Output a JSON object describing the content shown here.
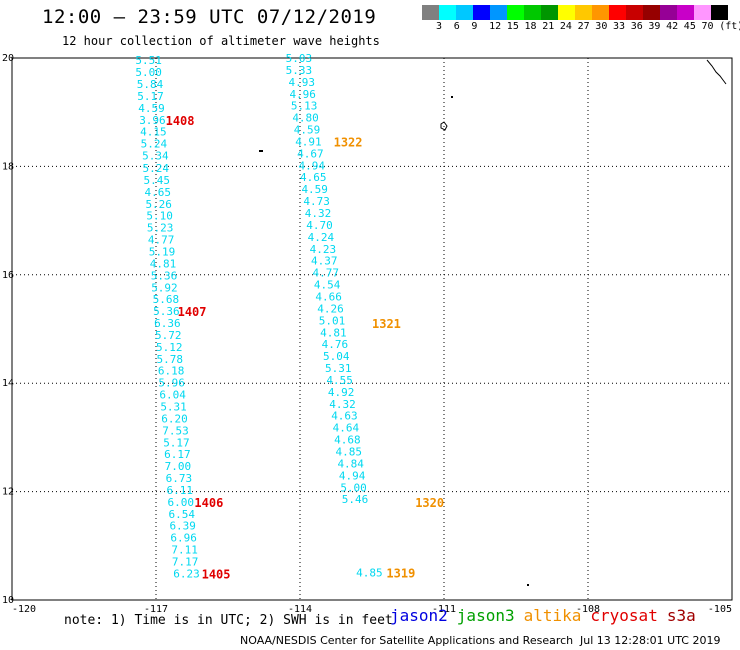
{
  "header": {
    "title": "12:00 — 23:59 UTC 07/12/2019",
    "subtitle": "12 hour collection of altimeter wave heights"
  },
  "legend": {
    "colors": [
      "#808080",
      "#00ffff",
      "#00c8ff",
      "#0000ff",
      "#0096ff",
      "#00ff00",
      "#00c800",
      "#009600",
      "#ffff00",
      "#ffc800",
      "#ff9600",
      "#ff0000",
      "#c80000",
      "#960000",
      "#960096",
      "#c800c8",
      "#ff96ff",
      "#000000"
    ],
    "labels": [
      "3",
      "6",
      "9",
      "12",
      "15",
      "18",
      "21",
      "24",
      "27",
      "30",
      "33",
      "36",
      "39",
      "42",
      "45",
      "70",
      "(ft)"
    ]
  },
  "axes": {
    "x_ticks": [
      "-120",
      "-117",
      "-114",
      "-111",
      "-108",
      "-105"
    ],
    "y_ticks": [
      "20",
      "18",
      "16",
      "14",
      "12",
      "10"
    ]
  },
  "tracks": [
    {
      "name": "1405-1408",
      "color": "#00d8f0",
      "points": [
        {
          "lon": -117.43,
          "lat": 19.96,
          "v": "5.51"
        },
        {
          "lon": -117.43,
          "lat": 19.74,
          "v": "5.00"
        },
        {
          "lon": -117.4,
          "lat": 19.52,
          "v": "5.84"
        },
        {
          "lon": -117.39,
          "lat": 19.3,
          "v": "5.17"
        },
        {
          "lon": -117.37,
          "lat": 19.08,
          "v": "4.59"
        },
        {
          "lon": -117.35,
          "lat": 18.86,
          "v": "3.96"
        },
        {
          "lon": -117.33,
          "lat": 18.64,
          "v": "4.15"
        },
        {
          "lon": -117.32,
          "lat": 18.42,
          "v": "5.24"
        },
        {
          "lon": -117.29,
          "lat": 18.2,
          "v": "5.34"
        },
        {
          "lon": -117.28,
          "lat": 17.97,
          "v": "5.24"
        },
        {
          "lon": -117.26,
          "lat": 17.75,
          "v": "5.45"
        },
        {
          "lon": -117.24,
          "lat": 17.53,
          "v": "4.65"
        },
        {
          "lon": -117.22,
          "lat": 17.31,
          "v": "5.26"
        },
        {
          "lon": -117.2,
          "lat": 17.09,
          "v": "5.10"
        },
        {
          "lon": -117.19,
          "lat": 16.87,
          "v": "5.23"
        },
        {
          "lon": -117.17,
          "lat": 16.65,
          "v": "4.77"
        },
        {
          "lon": -117.15,
          "lat": 16.43,
          "v": "5.19"
        },
        {
          "lon": -117.13,
          "lat": 16.21,
          "v": "4.81"
        },
        {
          "lon": -117.11,
          "lat": 15.99,
          "v": "5.36"
        },
        {
          "lon": -117.1,
          "lat": 15.77,
          "v": "5.92"
        },
        {
          "lon": -117.07,
          "lat": 15.55,
          "v": "5.68"
        },
        {
          "lon": -117.06,
          "lat": 15.33,
          "v": "5.36"
        },
        {
          "lon": -117.04,
          "lat": 15.11,
          "v": "6.36"
        },
        {
          "lon": -117.02,
          "lat": 14.89,
          "v": "5.72"
        },
        {
          "lon": -117.0,
          "lat": 14.67,
          "v": "5.12"
        },
        {
          "lon": -116.99,
          "lat": 14.45,
          "v": "5.78"
        },
        {
          "lon": -116.96,
          "lat": 14.23,
          "v": "6.18"
        },
        {
          "lon": -116.95,
          "lat": 14.01,
          "v": "5.96"
        },
        {
          "lon": -116.93,
          "lat": 13.79,
          "v": "6.04"
        },
        {
          "lon": -116.91,
          "lat": 13.57,
          "v": "5.31"
        },
        {
          "lon": -116.89,
          "lat": 13.35,
          "v": "6.20"
        },
        {
          "lon": -116.87,
          "lat": 13.13,
          "v": "7.53"
        },
        {
          "lon": -116.85,
          "lat": 12.91,
          "v": "5.17"
        },
        {
          "lon": -116.83,
          "lat": 12.69,
          "v": "6.17"
        },
        {
          "lon": -116.82,
          "lat": 12.47,
          "v": "7.00"
        },
        {
          "lon": -116.8,
          "lat": 12.25,
          "v": "6.73"
        },
        {
          "lon": -116.78,
          "lat": 12.03,
          "v": "6.11"
        },
        {
          "lon": -116.76,
          "lat": 11.81,
          "v": "6.00"
        },
        {
          "lon": -116.74,
          "lat": 11.59,
          "v": "6.54"
        },
        {
          "lon": -116.72,
          "lat": 11.37,
          "v": "6.39"
        },
        {
          "lon": -116.7,
          "lat": 11.15,
          "v": "6.96"
        },
        {
          "lon": -116.68,
          "lat": 10.93,
          "v": "7.11"
        },
        {
          "lon": -116.67,
          "lat": 10.71,
          "v": "7.17"
        },
        {
          "lon": -116.64,
          "lat": 10.49,
          "v": "6.23"
        }
      ]
    },
    {
      "name": "1319-1322",
      "color": "#00d8f0",
      "points": [
        {
          "lon": -114.3,
          "lat": 20.0,
          "v": "5.03"
        },
        {
          "lon": -114.3,
          "lat": 19.78,
          "v": "5.33"
        },
        {
          "lon": -114.24,
          "lat": 19.56,
          "v": "4.93"
        },
        {
          "lon": -114.22,
          "lat": 19.34,
          "v": "4.96"
        },
        {
          "lon": -114.19,
          "lat": 19.12,
          "v": "5.13"
        },
        {
          "lon": -114.16,
          "lat": 18.9,
          "v": "4.80"
        },
        {
          "lon": -114.13,
          "lat": 18.68,
          "v": "4.59"
        },
        {
          "lon": -114.1,
          "lat": 18.46,
          "v": "4.91"
        },
        {
          "lon": -114.06,
          "lat": 18.24,
          "v": "4.67"
        },
        {
          "lon": -114.03,
          "lat": 18.02,
          "v": "4.94"
        },
        {
          "lon": -114.0,
          "lat": 17.8,
          "v": "4.65"
        },
        {
          "lon": -113.97,
          "lat": 17.58,
          "v": "4.59"
        },
        {
          "lon": -113.93,
          "lat": 17.36,
          "v": "4.73"
        },
        {
          "lon": -113.9,
          "lat": 17.14,
          "v": "4.32"
        },
        {
          "lon": -113.87,
          "lat": 16.92,
          "v": "4.70"
        },
        {
          "lon": -113.84,
          "lat": 16.7,
          "v": "4.24"
        },
        {
          "lon": -113.8,
          "lat": 16.48,
          "v": "4.23"
        },
        {
          "lon": -113.77,
          "lat": 16.26,
          "v": "4.37"
        },
        {
          "lon": -113.74,
          "lat": 16.04,
          "v": "4.77"
        },
        {
          "lon": -113.71,
          "lat": 15.82,
          "v": "4.54"
        },
        {
          "lon": -113.68,
          "lat": 15.6,
          "v": "4.66"
        },
        {
          "lon": -113.64,
          "lat": 15.38,
          "v": "4.26"
        },
        {
          "lon": -113.61,
          "lat": 15.16,
          "v": "5.01"
        },
        {
          "lon": -113.58,
          "lat": 14.94,
          "v": "4.81"
        },
        {
          "lon": -113.55,
          "lat": 14.72,
          "v": "4.76"
        },
        {
          "lon": -113.52,
          "lat": 14.5,
          "v": "5.04"
        },
        {
          "lon": -113.48,
          "lat": 14.28,
          "v": "5.31"
        },
        {
          "lon": -113.45,
          "lat": 14.06,
          "v": "4.55"
        },
        {
          "lon": -113.42,
          "lat": 13.84,
          "v": "4.92"
        },
        {
          "lon": -113.39,
          "lat": 13.62,
          "v": "4.32"
        },
        {
          "lon": -113.35,
          "lat": 13.4,
          "v": "4.63"
        },
        {
          "lon": -113.32,
          "lat": 13.18,
          "v": "4.64"
        },
        {
          "lon": -113.29,
          "lat": 12.96,
          "v": "4.68"
        },
        {
          "lon": -113.26,
          "lat": 12.74,
          "v": "4.85"
        },
        {
          "lon": -113.22,
          "lat": 12.52,
          "v": "4.84"
        },
        {
          "lon": -113.19,
          "lat": 12.3,
          "v": "4.94"
        },
        {
          "lon": -113.16,
          "lat": 12.08,
          "v": "5.00"
        },
        {
          "lon": -113.13,
          "lat": 11.86,
          "v": "5.46"
        },
        {
          "lon": -112.83,
          "lat": 10.51,
          "v": "4.85"
        }
      ]
    }
  ],
  "time_labels": [
    {
      "lon": -116.8,
      "lat": 18.86,
      "t": "1408",
      "color": "#e00000"
    },
    {
      "lon": -116.55,
      "lat": 15.33,
      "t": "1407",
      "color": "#e00000"
    },
    {
      "lon": -116.2,
      "lat": 11.81,
      "t": "1406",
      "color": "#e00000"
    },
    {
      "lon": -116.05,
      "lat": 10.49,
      "t": "1405",
      "color": "#e00000"
    },
    {
      "lon": -113.3,
      "lat": 18.46,
      "t": "1322",
      "color": "#f09000"
    },
    {
      "lon": -112.5,
      "lat": 15.11,
      "t": "1321",
      "color": "#f09000"
    },
    {
      "lon": -111.6,
      "lat": 11.81,
      "t": "1320",
      "color": "#f09000"
    },
    {
      "lon": -112.2,
      "lat": 10.51,
      "t": "1319",
      "color": "#f09000"
    }
  ],
  "footer": {
    "note": "note: 1) Time is in UTC; 2) SWH is in feet",
    "satellites": [
      {
        "name": "jason2",
        "color": "#0000e0"
      },
      {
        "name": "jason3",
        "color": "#00a000"
      },
      {
        "name": "altika",
        "color": "#f09000"
      },
      {
        "name": "cryosat",
        "color": "#e00000"
      },
      {
        "name": "s3a",
        "color": "#a00000"
      }
    ],
    "credit": "NOAA/NESDIS Center for Satellite Applications and Research",
    "generated": "Jul 13 12:28:01 UTC 2019"
  }
}
